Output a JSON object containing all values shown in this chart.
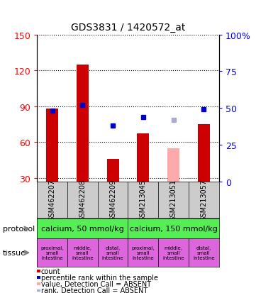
{
  "title": "GDS3831 / 1420572_at",
  "samples": [
    "GSM462207",
    "GSM462208",
    "GSM462209",
    "GSM213045",
    "GSM213051",
    "GSM213057"
  ],
  "bar_values": [
    88,
    125,
    46,
    67,
    55,
    75
  ],
  "bar_colors": [
    "#cc0000",
    "#cc0000",
    "#cc0000",
    "#cc0000",
    "#ffaaaa",
    "#cc0000"
  ],
  "dot_values": [
    48,
    52,
    38,
    44,
    42,
    49
  ],
  "dot_colors": [
    "#0000cc",
    "#0000cc",
    "#0000cc",
    "#0000cc",
    "#aaaacc",
    "#0000cc"
  ],
  "ylim_left": [
    27,
    150
  ],
  "ylim_right": [
    0,
    100
  ],
  "yticks_left": [
    30,
    60,
    90,
    120,
    150
  ],
  "yticks_right": [
    0,
    25,
    50,
    75,
    100
  ],
  "protocol_labels": [
    "calcium, 50 mmol/kg",
    "calcium, 150 mmol/kg"
  ],
  "protocol_color": "#55ee55",
  "tissue_labels": [
    "proximal,\nsmall\nintestine",
    "middle,\nsmall\nintestine",
    "distal,\nsmall\nintestine",
    "proximal,\nsmall\nintestine",
    "middle,\nsmall\nintestine",
    "distal,\nsmall\nintestine"
  ],
  "tissue_color": "#dd66dd",
  "sample_bg": "#cccccc",
  "legend_items": [
    {
      "color": "#cc0000",
      "label": "count"
    },
    {
      "color": "#0000cc",
      "label": "percentile rank within the sample"
    },
    {
      "color": "#ffaaaa",
      "label": "value, Detection Call = ABSENT"
    },
    {
      "color": "#aaaacc",
      "label": "rank, Detection Call = ABSENT"
    }
  ]
}
